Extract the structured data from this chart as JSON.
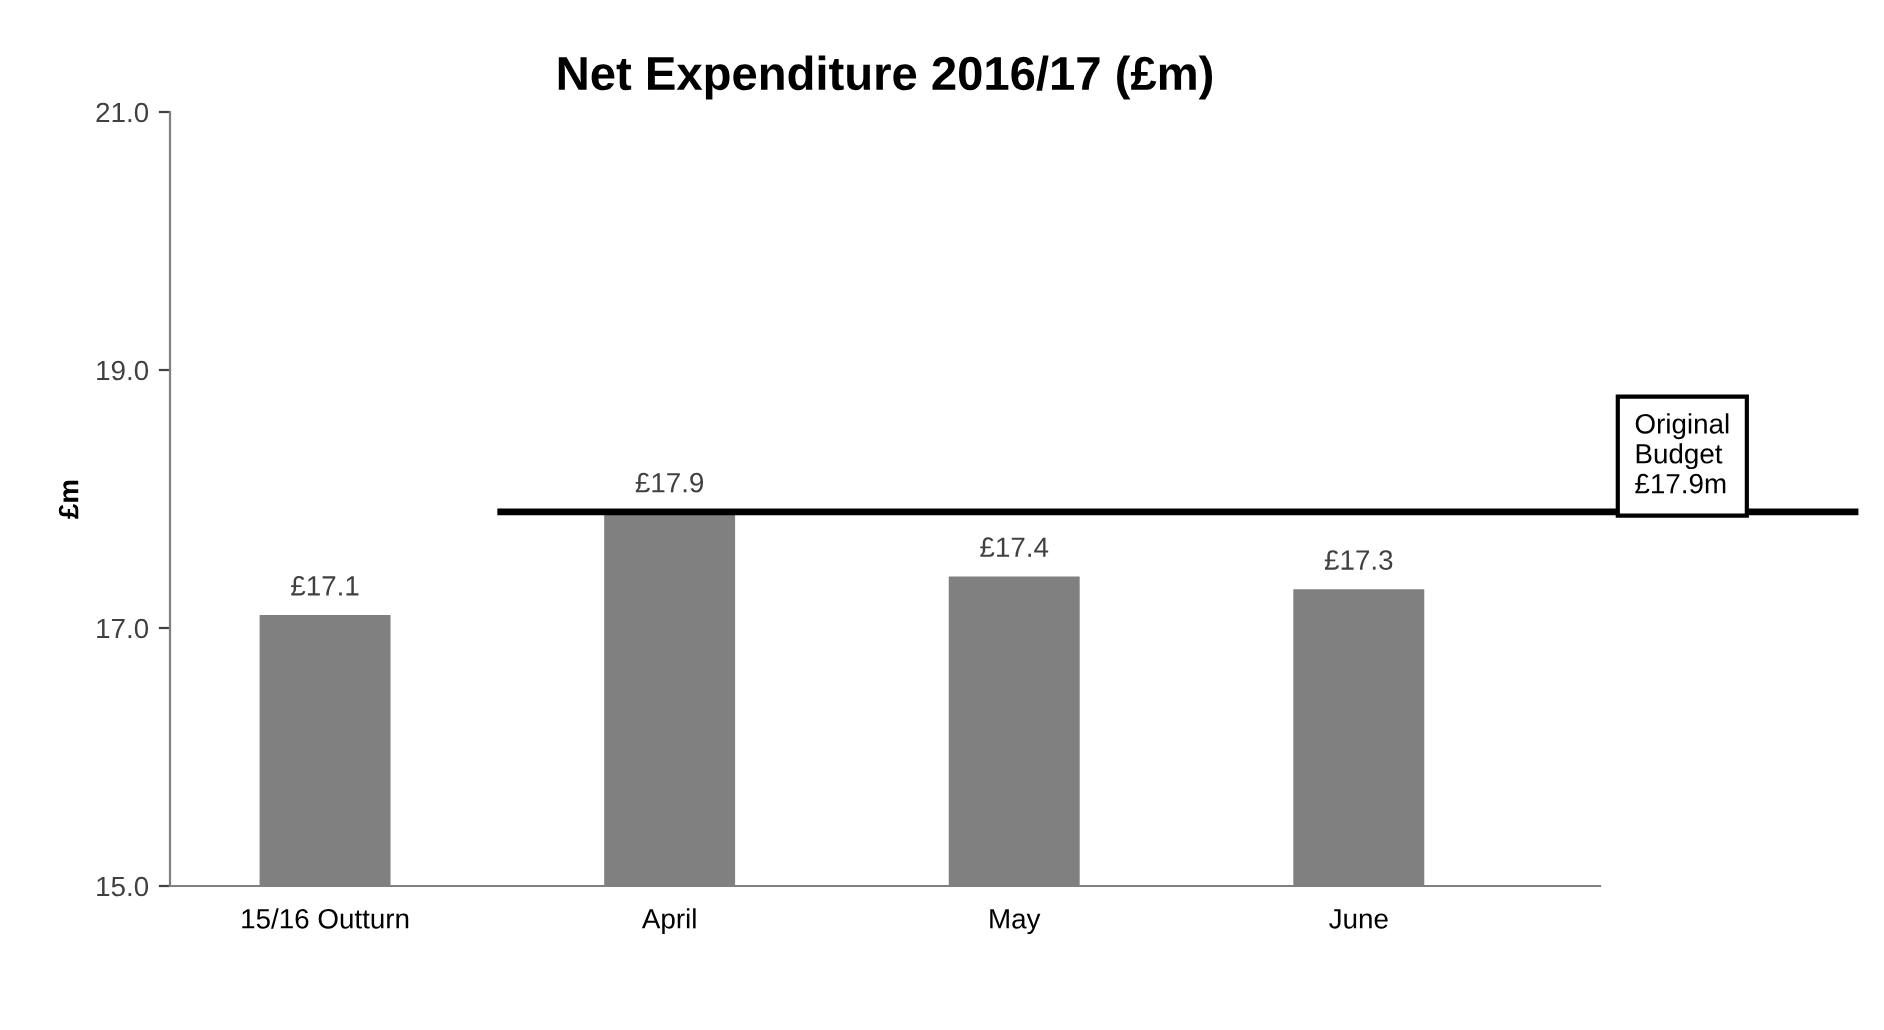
{
  "chart_data": {
    "type": "bar",
    "title": "Net Expenditure 2016/17 (£m)",
    "ylabel": "£m",
    "categories": [
      "15/16 Outturn",
      "April",
      "May",
      "June"
    ],
    "values": [
      17.1,
      17.9,
      17.4,
      17.3
    ],
    "value_labels": [
      "£17.1",
      "£17.9",
      "£17.4",
      "£17.3"
    ],
    "color": "#808080",
    "ylim": [
      15.0,
      21.0
    ],
    "yticks": [
      {
        "value": 15.0,
        "label": "15.0"
      },
      {
        "value": 17.0,
        "label": "17.0"
      },
      {
        "value": 19.0,
        "label": "19.0"
      },
      {
        "value": 21.0,
        "label": "21.0"
      }
    ],
    "ref_lines": [
      {
        "axis": "y",
        "value": 17.9,
        "label": "Original\nBudget\n£17.9m",
        "color": "#000000"
      }
    ],
    "grid": false,
    "legend": false
  }
}
